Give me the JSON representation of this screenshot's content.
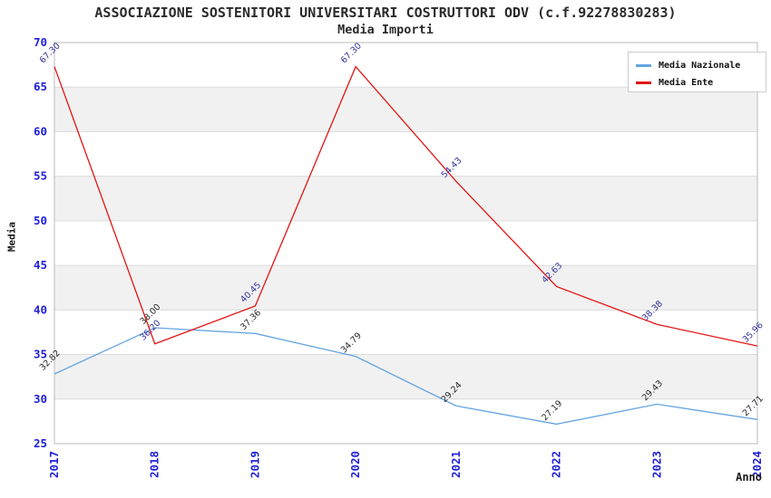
{
  "title": "ASSOCIAZIONE SOSTENITORI UNIVERSITARI COSTRUTTORI ODV (c.f.92278830283)",
  "subtitle": "Media Importi",
  "chart_data": {
    "type": "line",
    "x_categories": [
      "2017",
      "2018",
      "2019",
      "2020",
      "2021",
      "2022",
      "2023",
      "2024"
    ],
    "series": [
      {
        "name": "Media Nazionale",
        "color": "#64a5e0",
        "label_color": "#26262a",
        "values": [
          32.82,
          38.0,
          37.36,
          34.79,
          29.24,
          27.19,
          29.43,
          27.71
        ],
        "labels": [
          "32.82",
          "38.00",
          "37.36",
          "34.79",
          "29.24",
          "27.19",
          "29.43",
          "27.71"
        ]
      },
      {
        "name": "Media Ente",
        "color": "#e41414",
        "label_color": "#30309a",
        "values": [
          67.3,
          36.2,
          40.45,
          67.3,
          54.43,
          42.63,
          38.38,
          35.96
        ],
        "labels": [
          "67.30",
          "36.20",
          "40.45",
          "67.30",
          "54.43",
          "42.63",
          "38.38",
          "35.96"
        ]
      }
    ],
    "xlabel": "Anno",
    "ylabel": "Media",
    "ylim": [
      25,
      70
    ],
    "ytick_step": 5,
    "yticks": [
      "25",
      "30",
      "35",
      "40",
      "45",
      "50",
      "55",
      "60",
      "65",
      "70"
    ],
    "grid": true,
    "legend_position": "top-right",
    "colors": {
      "tick": "#2020d8",
      "grid_line": "#dcdcdc",
      "band_fill": "#f1f1f1",
      "plot_border": "#bbbbbb",
      "background": "#ffffff"
    }
  }
}
